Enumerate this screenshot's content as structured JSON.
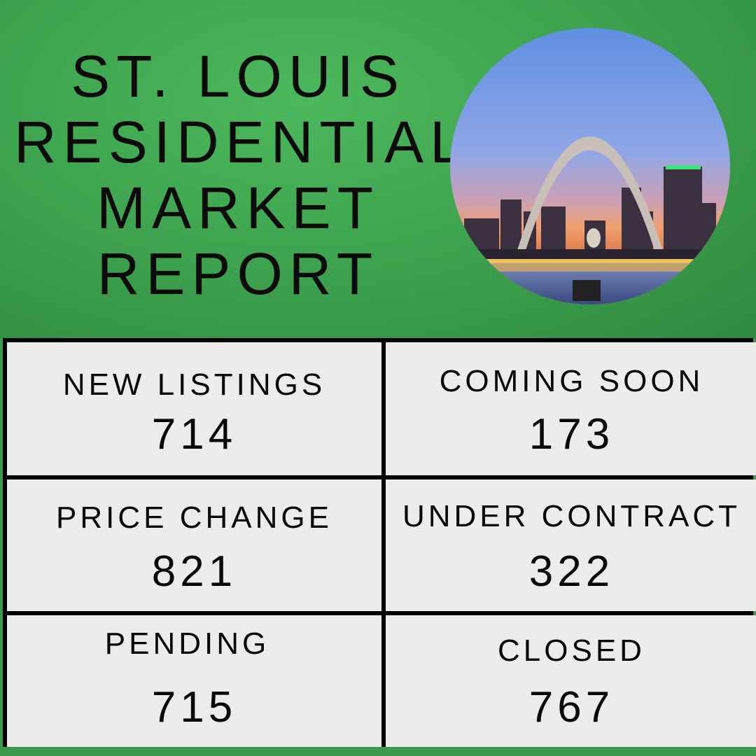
{
  "title_lines": [
    "ST. LOUIS",
    "RESIDENTIAL",
    "MARKET",
    "REPORT"
  ],
  "photo": {
    "subject": "St. Louis skyline with Gateway Arch at dusk"
  },
  "colors": {
    "background_green": "#3fa450",
    "cell_bg": "#ececea",
    "border": "#000000"
  },
  "stats": [
    {
      "label": "NEW LISTINGS",
      "value": "714"
    },
    {
      "label": "COMING SOON",
      "value": "173"
    },
    {
      "label": "PRICE CHANGE",
      "value": "821"
    },
    {
      "label": "UNDER CONTRACT",
      "value": "322"
    },
    {
      "label": "PENDING",
      "value": "715"
    },
    {
      "label": "CLOSED",
      "value": "767"
    }
  ]
}
